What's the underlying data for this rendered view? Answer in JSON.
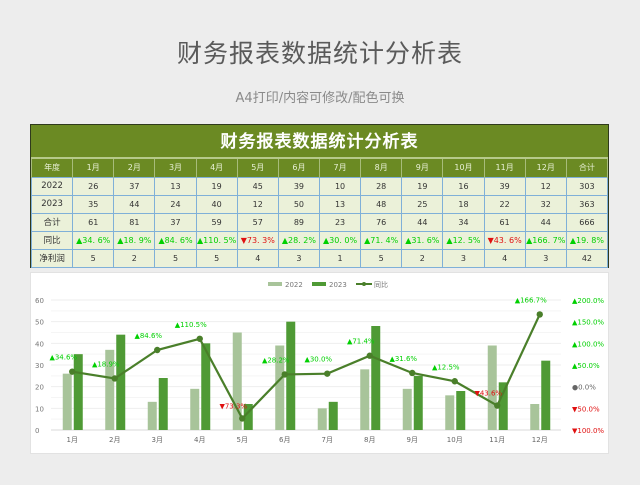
{
  "header": {
    "title": "财务报表数据统计分析表",
    "subtitle": "A4打印/内容可修改/配色可换"
  },
  "table": {
    "title": "财务报表数据统计分析表",
    "columns": [
      "年度",
      "1月",
      "2月",
      "3月",
      "4月",
      "5月",
      "6月",
      "7月",
      "8月",
      "9月",
      "10月",
      "11月",
      "12月",
      "合计"
    ],
    "rows": [
      {
        "label": "2022",
        "cells": [
          "26",
          "37",
          "13",
          "19",
          "45",
          "39",
          "10",
          "28",
          "19",
          "16",
          "39",
          "12",
          "303"
        ]
      },
      {
        "label": "2023",
        "cells": [
          "35",
          "44",
          "24",
          "40",
          "12",
          "50",
          "13",
          "48",
          "25",
          "18",
          "22",
          "32",
          "363"
        ]
      },
      {
        "label": "合计",
        "cells": [
          "61",
          "81",
          "37",
          "59",
          "57",
          "89",
          "23",
          "76",
          "44",
          "34",
          "61",
          "44",
          "666"
        ]
      },
      {
        "label": "同比",
        "cells": [
          "▲34. 6%",
          "▲18. 9%",
          "▲84. 6%",
          "▲110. 5%",
          "▼73. 3%",
          "▲28. 2%",
          "▲30. 0%",
          "▲71. 4%",
          "▲31. 6%",
          "▲12. 5%",
          "▼43. 6%",
          "▲166. 7%",
          "▲19. 8%"
        ]
      },
      {
        "label": "净利润",
        "cells": [
          "5",
          "2",
          "5",
          "5",
          "4",
          "3",
          "1",
          "5",
          "2",
          "3",
          "4",
          "3",
          "42"
        ]
      }
    ]
  },
  "colors": {
    "header_green": "#6b8a23",
    "cell_bg": "#ebf1d9",
    "grid_blue": "#7fb0d8",
    "bar_2022": "#a8c49a",
    "bar_2023": "#4f9a35",
    "line": "#4a7f2a",
    "up": "#00d000",
    "down": "#e01010"
  },
  "chart_data": {
    "type": "bar+line",
    "categories": [
      "1月",
      "2月",
      "3月",
      "4月",
      "5月",
      "6月",
      "7月",
      "8月",
      "9月",
      "10月",
      "11月",
      "12月"
    ],
    "series": [
      {
        "name": "2022",
        "type": "bar",
        "axis": "left",
        "values": [
          26,
          37,
          13,
          19,
          45,
          39,
          10,
          28,
          19,
          16,
          39,
          12
        ]
      },
      {
        "name": "2023",
        "type": "bar",
        "axis": "left",
        "values": [
          35,
          44,
          24,
          40,
          12,
          50,
          13,
          48,
          25,
          18,
          22,
          32
        ]
      },
      {
        "name": "同比",
        "type": "line",
        "axis": "right",
        "values": [
          34.6,
          18.9,
          84.6,
          110.5,
          -73.3,
          28.2,
          30.0,
          71.4,
          31.6,
          12.5,
          -43.6,
          166.7
        ]
      }
    ],
    "data_labels": [
      "▲34.6%",
      "▲18.9%",
      "▲84.6%",
      "▲110.5%",
      "▼73.3%",
      "▲28.2%",
      "▲30.0%",
      "▲71.4%",
      "▲31.6%",
      "▲12.5%",
      "▼43.6%",
      "▲166.7%"
    ],
    "legend": [
      "2022",
      "2023",
      "同比"
    ],
    "legend_position": "top",
    "left_axis": {
      "ticks": [
        0,
        10,
        20,
        30,
        40,
        50,
        60
      ],
      "ylim": [
        0,
        60
      ]
    },
    "right_axis": {
      "ticks": [
        200,
        150,
        100,
        50,
        0,
        -50,
        -100
      ],
      "tick_labels": [
        "▲200.0%",
        "▲150.0%",
        "▲100.0%",
        "▲50.0%",
        "●0.0%",
        "▼50.0%",
        "▼100.0%"
      ],
      "ylim": [
        -100,
        200
      ]
    },
    "grid": true,
    "title": "",
    "xlabel": "",
    "ylabel": ""
  }
}
